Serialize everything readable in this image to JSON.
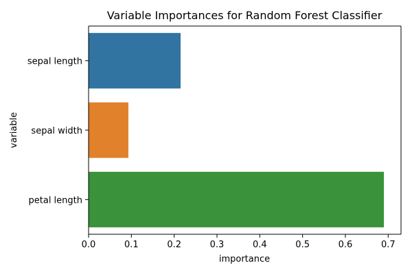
{
  "chart_data": {
    "type": "bar",
    "orientation": "horizontal",
    "title": "Variable Importances for Random Forest Classifier",
    "xlabel": "importance",
    "ylabel": "variable",
    "categories": [
      "sepal length",
      "sepal width",
      "petal length"
    ],
    "values": [
      0.215,
      0.093,
      0.69
    ],
    "colors": [
      "#3274a1",
      "#e1812c",
      "#3a923a"
    ],
    "xlim": [
      0.0,
      0.73
    ],
    "xticks": [
      0.0,
      0.1,
      0.2,
      0.3,
      0.4,
      0.5,
      0.6,
      0.7
    ],
    "xtick_labels": [
      "0.0",
      "0.1",
      "0.2",
      "0.3",
      "0.4",
      "0.5",
      "0.6",
      "0.7"
    ],
    "grid": false,
    "legend": "none"
  }
}
